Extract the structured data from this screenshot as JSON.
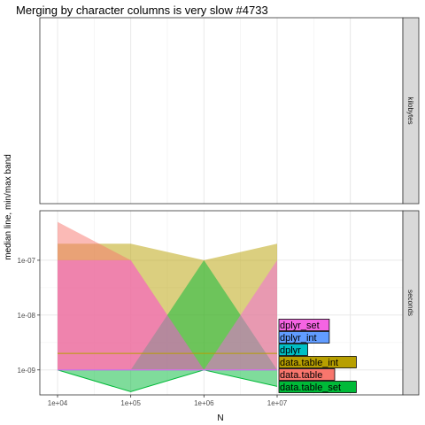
{
  "chart_data": {
    "type": "area",
    "title": "Merging by character columns is very slow #4733",
    "xlabel": "N",
    "ylabel": "median line, min/max band",
    "x_scale": "log10",
    "x_ticks": [
      10000,
      100000,
      1000000,
      10000000
    ],
    "x_tick_labels": [
      "1e+04",
      "1e+05",
      "1e+06",
      "1e+07"
    ],
    "xlim": [
      10000,
      10000000
    ],
    "y_scale": "log10",
    "grid": true,
    "legend": "direct labels at right end of series",
    "panels": [
      {
        "strip": "kilobytes",
        "y_ticks": [],
        "y_tick_labels": [],
        "series": []
      },
      {
        "strip": "seconds",
        "y_ticks": [
          1e-09,
          1e-08,
          1e-07
        ],
        "y_tick_labels": [
          "1e-09",
          "1e-08",
          "1e-07"
        ],
        "ylim": [
          3.5e-10,
          8e-07
        ],
        "series": [
          {
            "name": "data.table_int",
            "color": "#B79F00",
            "x": [
              10000,
              100000,
              1000000,
              10000000
            ],
            "median": [
              2e-09,
              2e-09,
              2e-09,
              2e-09
            ],
            "min": [
              1e-09,
              1e-09,
              1e-09,
              1e-09
            ],
            "max": [
              2e-07,
              2e-07,
              1e-07,
              2e-07
            ]
          },
          {
            "name": "data.table",
            "color": "#F8766D",
            "x": [
              10000,
              100000,
              1000000,
              10000000
            ],
            "median": [
              1e-09,
              1e-09,
              1e-09,
              1e-09
            ],
            "min": [
              1e-09,
              1e-09,
              1e-09,
              1e-09
            ],
            "max": [
              5e-07,
              1e-07,
              1e-09,
              1e-09
            ]
          },
          {
            "name": "data.table_set",
            "color": "#00BA38",
            "x": [
              10000,
              100000,
              1000000,
              10000000
            ],
            "median": [
              1e-09,
              4e-10,
              1e-09,
              5e-10
            ],
            "min": [
              1e-09,
              4e-10,
              1e-09,
              5e-10
            ],
            "max": [
              1e-09,
              1e-09,
              1e-07,
              1e-09
            ]
          },
          {
            "name": "dplyr",
            "color": "#00BFC4",
            "x": [
              10000,
              100000,
              1000000,
              10000000
            ],
            "median": [
              1e-09,
              1e-09,
              1e-09,
              1e-09
            ],
            "min": [
              1e-09,
              1e-09,
              1e-09,
              1e-09
            ],
            "max": [
              1e-09,
              1e-09,
              1e-09,
              1e-09
            ]
          },
          {
            "name": "dplyr_int",
            "color": "#619CFF",
            "x": [
              10000,
              100000,
              1000000,
              10000000
            ],
            "median": [
              1e-09,
              1e-09,
              1e-09,
              1e-09
            ],
            "min": [
              1e-09,
              1e-09,
              1e-09,
              1e-09
            ],
            "max": [
              1e-09,
              1e-09,
              1e-09,
              1e-09
            ]
          },
          {
            "name": "dplyr_set",
            "color": "#F564E3",
            "x": [
              10000,
              100000,
              1000000,
              10000000
            ],
            "median": [
              1e-09,
              1e-09,
              1e-09,
              1e-09
            ],
            "min": [
              1e-09,
              1e-09,
              1e-09,
              1e-09
            ],
            "max": [
              1e-07,
              1e-07,
              1e-09,
              1e-07
            ]
          }
        ],
        "labels_order": [
          "dplyr_set",
          "dplyr_int",
          "dplyr",
          "data.table_int",
          "data.table",
          "data.table_set"
        ]
      }
    ]
  }
}
